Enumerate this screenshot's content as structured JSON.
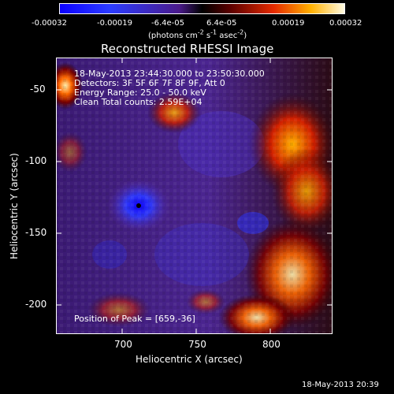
{
  "colorbar": {
    "tick_labels": [
      "-0.00032",
      "-0.00019",
      "-6.4e-05",
      "6.4e-05",
      "0.00019",
      "0.00032"
    ],
    "units_line1": "(photons cm",
    "units_sup1": "-2",
    "units_mid1": " s",
    "units_sup2": "-1",
    "units_mid2": " asec",
    "units_sup3": "-2",
    "units_end": ")"
  },
  "plot": {
    "title": "Reconstructed RHESSI Image",
    "xlabel": "Heliocentric X (arcsec)",
    "ylabel": "Heliocentric Y (arcsec)",
    "x_ticks": [
      "700",
      "750",
      "800"
    ],
    "y_ticks": [
      "-50",
      "-100",
      "-150",
      "-200"
    ],
    "info_lines": [
      "18-May-2013 23:44:30.000 to 23:50:30.000",
      "Detectors: 3F 5F 6F 7F 8F 9F, Att 0",
      "Energy Range: 25.0 - 50.0 keV",
      "Clean     Total counts: 2.59E+04"
    ],
    "peak_label": "Position of Peak = [659,-36]"
  },
  "footer": {
    "timestamp": "18-May-2013 20:39"
  },
  "colors": {
    "background": "#000000",
    "low": "#1a20c8",
    "mid": "#5a2ca8",
    "high": "#ff5a00",
    "peak": "#ffffff"
  }
}
